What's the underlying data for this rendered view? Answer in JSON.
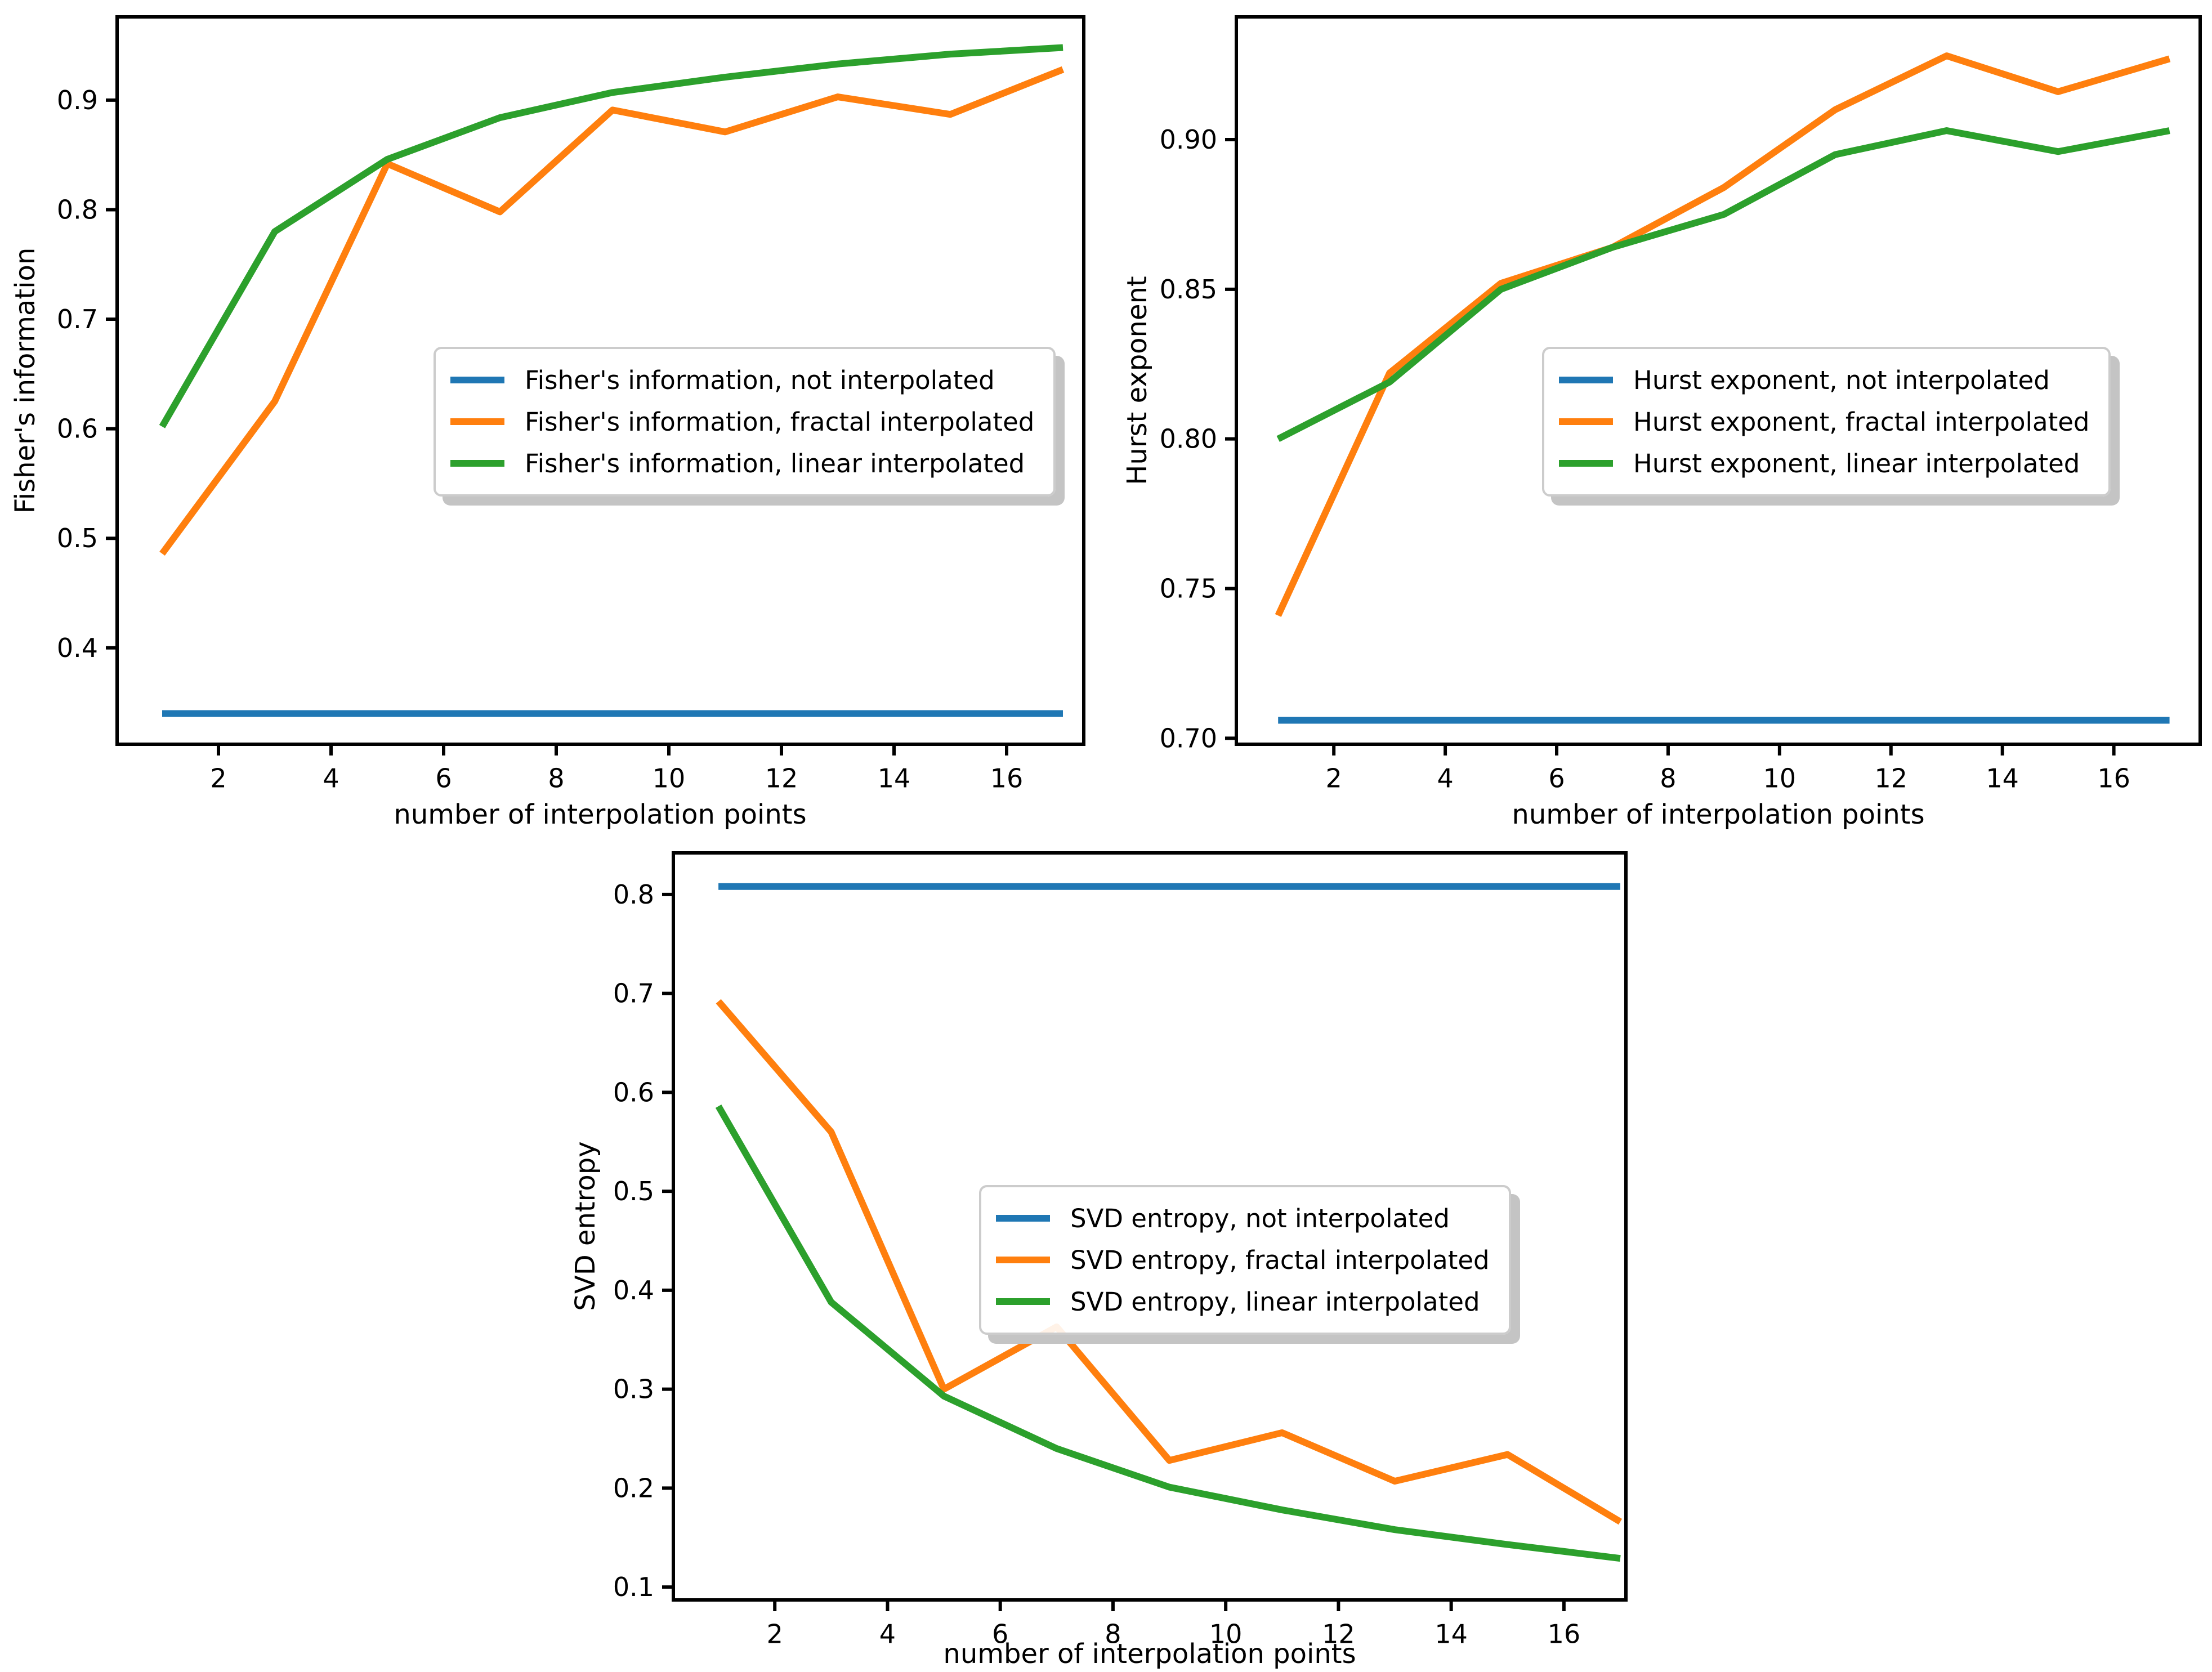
{
  "figure": {
    "background": "#ffffff",
    "series_colors": {
      "not_interpolated": "#1f77b4",
      "fractal_interpolated": "#ff7f0e",
      "linear_interpolated": "#2ca02c"
    }
  },
  "chart_data": [
    {
      "type": "line",
      "id": "fishers-information",
      "title": "",
      "xlabel": "number of interpolation points",
      "ylabel": "Fisher's information",
      "x": [
        1,
        3,
        5,
        7,
        9,
        11,
        13,
        15,
        17
      ],
      "xticks": [
        2,
        4,
        6,
        8,
        10,
        12,
        14,
        16
      ],
      "yticks": [
        0.4,
        0.5,
        0.6,
        0.7,
        0.8,
        0.9
      ],
      "ytick_labels": [
        "0.4",
        "0.5",
        "0.6",
        "0.7",
        "0.8",
        "0.9"
      ],
      "xlim": [
        0.2,
        17.37
      ],
      "ylim": [
        0.312,
        0.976
      ],
      "grid": false,
      "legend_position": "center right",
      "series": [
        {
          "name": "not_interpolated",
          "label": "Fisher's information, not interpolated",
          "color": "#1f77b4",
          "values": [
            0.34,
            0.34,
            0.34,
            0.34,
            0.34,
            0.34,
            0.34,
            0.34,
            0.34
          ]
        },
        {
          "name": "fractal_interpolated",
          "label": "Fisher's information, fractal interpolated",
          "color": "#ff7f0e",
          "values": [
            0.486,
            0.625,
            0.842,
            0.798,
            0.891,
            0.871,
            0.903,
            0.887,
            0.928
          ]
        },
        {
          "name": "linear_interpolated",
          "label": "Fisher's information, linear interpolated",
          "color": "#2ca02c",
          "values": [
            0.602,
            0.78,
            0.846,
            0.884,
            0.907,
            0.921,
            0.933,
            0.942,
            0.948
          ]
        }
      ]
    },
    {
      "type": "line",
      "id": "hurst-exponent",
      "title": "",
      "xlabel": "number of interpolation points",
      "ylabel": "Hurst exponent",
      "x": [
        1,
        3,
        5,
        7,
        9,
        11,
        13,
        15,
        17
      ],
      "xticks": [
        2,
        4,
        6,
        8,
        10,
        12,
        14,
        16
      ],
      "yticks": [
        0.7,
        0.75,
        0.8,
        0.85,
        0.9
      ],
      "ytick_labels": [
        "0.70",
        "0.75",
        "0.80",
        "0.85",
        "0.90"
      ],
      "xlim": [
        0.25,
        17.55
      ],
      "ylim": [
        0.698,
        0.941
      ],
      "grid": false,
      "legend_position": "center right",
      "series": [
        {
          "name": "not_interpolated",
          "label": "Hurst exponent, not interpolated",
          "color": "#1f77b4",
          "values": [
            0.706,
            0.706,
            0.706,
            0.706,
            0.706,
            0.706,
            0.706,
            0.706,
            0.706
          ]
        },
        {
          "name": "fractal_interpolated",
          "label": "Hurst exponent, fractal interpolated",
          "color": "#ff7f0e",
          "values": [
            0.741,
            0.822,
            0.852,
            0.864,
            0.884,
            0.91,
            0.928,
            0.916,
            0.927
          ]
        },
        {
          "name": "linear_interpolated",
          "label": "Hurst exponent, linear interpolated",
          "color": "#2ca02c",
          "values": [
            0.8,
            0.819,
            0.85,
            0.864,
            0.875,
            0.895,
            0.903,
            0.896,
            0.903
          ]
        }
      ]
    },
    {
      "type": "line",
      "id": "svd-entropy",
      "title": "",
      "xlabel": "number of interpolation points",
      "ylabel": "SVD entropy",
      "x": [
        1,
        3,
        5,
        7,
        9,
        11,
        13,
        15,
        17
      ],
      "xticks": [
        2,
        4,
        6,
        8,
        10,
        12,
        14,
        16
      ],
      "yticks": [
        0.1,
        0.2,
        0.3,
        0.4,
        0.5,
        0.6,
        0.7,
        0.8
      ],
      "ytick_labels": [
        "0.1",
        "0.2",
        "0.3",
        "0.4",
        "0.5",
        "0.6",
        "0.7",
        "0.8"
      ],
      "xlim": [
        0.2,
        17.1
      ],
      "ylim": [
        0.087,
        0.842
      ],
      "grid": false,
      "legend_position": "center right",
      "series": [
        {
          "name": "not_interpolated",
          "label": "SVD entropy, not interpolated",
          "color": "#1f77b4",
          "values": [
            0.808,
            0.808,
            0.808,
            0.808,
            0.808,
            0.808,
            0.808,
            0.808,
            0.808
          ]
        },
        {
          "name": "fractal_interpolated",
          "label": "SVD entropy, fractal interpolated",
          "color": "#ff7f0e",
          "values": [
            0.692,
            0.56,
            0.3,
            0.363,
            0.228,
            0.256,
            0.207,
            0.234,
            0.166
          ]
        },
        {
          "name": "linear_interpolated",
          "label": "SVD entropy, linear interpolated",
          "color": "#2ca02c",
          "values": [
            0.586,
            0.388,
            0.293,
            0.24,
            0.201,
            0.178,
            0.158,
            0.143,
            0.129
          ]
        }
      ]
    }
  ]
}
